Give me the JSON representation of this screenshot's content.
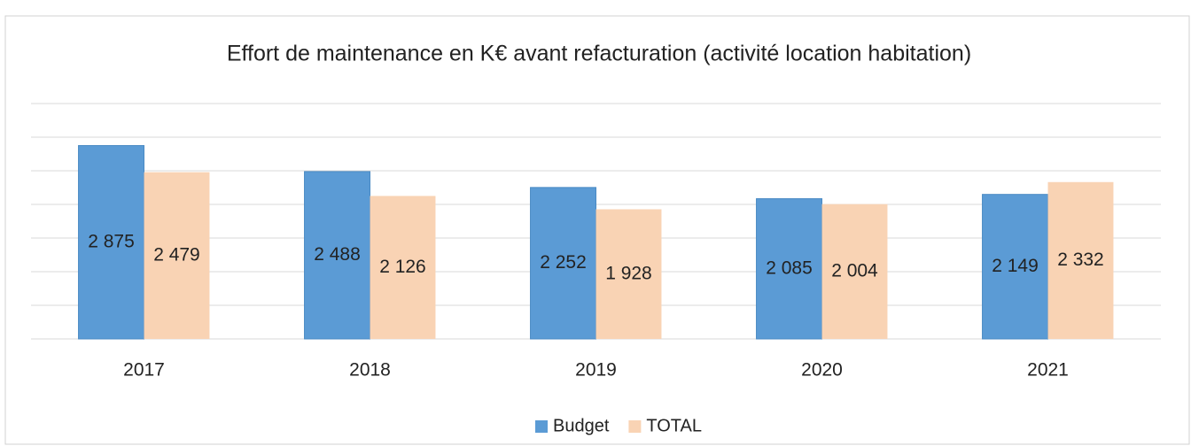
{
  "chart_data": {
    "type": "bar",
    "title": "Effort de maintenance en K€ avant refacturation (activité location habitation)",
    "categories": [
      "2017",
      "2018",
      "2019",
      "2020",
      "2021"
    ],
    "series": [
      {
        "name": "Budget",
        "color": "#5b9bd5",
        "values": [
          2875,
          2488,
          2252,
          2085,
          2149
        ],
        "value_labels": [
          "2 875",
          "2 488",
          "2 252",
          "2 085",
          "2 149"
        ]
      },
      {
        "name": "TOTAL",
        "color": "#f9d3b4",
        "values": [
          2479,
          2126,
          1928,
          2004,
          2332
        ],
        "value_labels": [
          "2 479",
          "2 126",
          "1 928",
          "2 004",
          "2 332"
        ]
      }
    ],
    "ylim": [
      0,
      3500
    ],
    "yticks": [
      0,
      500,
      1000,
      1500,
      2000,
      2500,
      3000,
      3500
    ],
    "grid": true,
    "legend": "bottom"
  }
}
